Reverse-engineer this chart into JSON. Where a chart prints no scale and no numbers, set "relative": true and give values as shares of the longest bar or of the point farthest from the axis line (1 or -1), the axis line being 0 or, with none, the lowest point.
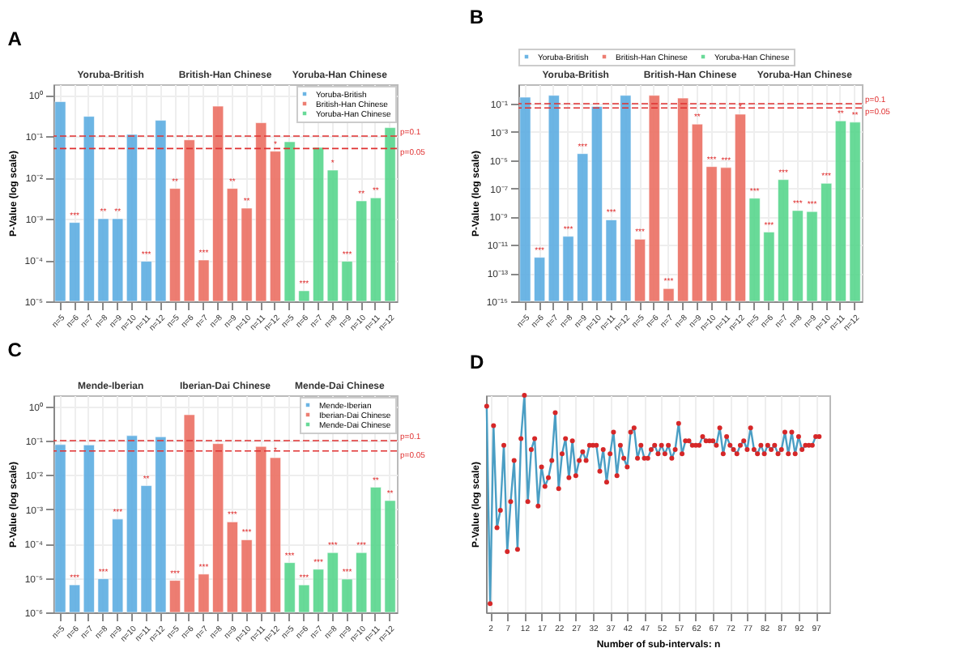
{
  "chart_data": [
    {
      "type": "bar",
      "title": "A",
      "ylabel": "P-Value (log scale)",
      "log": "y",
      "grid": true,
      "legend": "top right",
      "categories": [
        "n=5",
        "n=6",
        "n=7",
        "n=8",
        "n=9",
        "n=10",
        "n=11",
        "n=12",
        "n=5",
        "n=6",
        "n=7",
        "n=8",
        "n=9",
        "n=10",
        "n=11",
        "n=12",
        "n=5",
        "n=6",
        "n=7",
        "n=8",
        "n=9",
        "n=10",
        "n=11",
        "n=12"
      ],
      "ylim": [
        1e-05,
        1.8
      ],
      "yticks": [
        {
          "value": 1,
          "label": "10⁰"
        },
        {
          "value": 0.1,
          "label": "10⁻¹"
        },
        {
          "value": 0.01,
          "label": "10⁻²"
        },
        {
          "value": 0.001,
          "label": "10⁻³"
        },
        {
          "value": 0.0001,
          "label": "10⁻⁴"
        },
        {
          "value": 1e-05,
          "label": "10⁻⁵"
        }
      ],
      "series": [
        {
          "name": "Yoruba-British",
          "color": "#5dade2",
          "values": [
            0.68,
            0.00081,
            0.3,
            0.001,
            0.001,
            0.11,
            9.3e-05,
            0.24,
            null,
            null,
            null,
            null,
            null,
            null,
            null,
            null,
            null,
            null,
            null,
            null,
            null,
            null,
            null,
            null
          ],
          "value_labels": [
            null,
            "***",
            null,
            "**",
            "**",
            null,
            "***",
            null,
            null,
            null,
            null,
            null,
            null,
            null,
            null,
            null,
            null,
            null,
            null,
            null,
            null,
            null,
            null,
            null
          ]
        },
        {
          "name": "British-Han Chinese",
          "color": "#ec7063",
          "values": [
            null,
            null,
            null,
            null,
            null,
            null,
            null,
            null,
            0.0054,
            0.081,
            0.0001,
            0.53,
            0.0054,
            0.0018,
            0.21,
            0.043,
            null,
            null,
            null,
            null,
            null,
            null,
            null,
            null
          ],
          "value_labels": [
            null,
            null,
            null,
            null,
            null,
            null,
            null,
            null,
            "**",
            null,
            "***",
            null,
            "**",
            "**",
            null,
            "*",
            null,
            null,
            null,
            null,
            null,
            null,
            null,
            null
          ]
        },
        {
          "name": "Yoruba-Han Chinese",
          "color": "#58d68d",
          "values": [
            null,
            null,
            null,
            null,
            null,
            null,
            null,
            null,
            null,
            null,
            null,
            null,
            null,
            null,
            null,
            null,
            0.073,
            1.8e-05,
            0.053,
            0.015,
            9.3e-05,
            0.0027,
            0.0032,
            0.16
          ],
          "value_labels": [
            null,
            null,
            null,
            null,
            null,
            null,
            null,
            null,
            null,
            null,
            null,
            null,
            null,
            null,
            null,
            null,
            null,
            "***",
            null,
            "*",
            "***",
            "**",
            "**",
            null
          ]
        }
      ],
      "ref_lines": [
        {
          "axis": "y",
          "value": 0.1,
          "label": "p=0.1",
          "color": "#e03030",
          "line_style": "dashed"
        },
        {
          "axis": "y",
          "value": 0.05,
          "label": "p=0.05",
          "color": "#e03030",
          "line_style": "dashed"
        }
      ],
      "annotations": [
        "Yoruba-British",
        "British-Han Chinese",
        "Yoruba-Han Chinese"
      ]
    },
    {
      "type": "bar",
      "title": "B",
      "ylabel": "P-Value (log scale)",
      "log": "y",
      "grid": true,
      "legend": "top",
      "categories": [
        "n=5",
        "n=6",
        "n=7",
        "n=8",
        "n=9",
        "n=10",
        "n=11",
        "n=12",
        "n=5",
        "n=6",
        "n=7",
        "n=8",
        "n=9",
        "n=10",
        "n=11",
        "n=12",
        "n=5",
        "n=6",
        "n=7",
        "n=8",
        "n=9",
        "n=10",
        "n=11",
        "n=12"
      ],
      "ylim": [
        1e-15,
        2.4
      ],
      "yticks": [
        {
          "value": 0.1,
          "label": "10⁻¹"
        },
        {
          "value": 0.001,
          "label": "10⁻³"
        },
        {
          "value": 1e-05,
          "label": "10⁻⁵"
        },
        {
          "value": 1e-07,
          "label": "10⁻⁷"
        },
        {
          "value": 1e-09,
          "label": "10⁻⁹"
        },
        {
          "value": 1e-11,
          "label": "10⁻¹¹"
        },
        {
          "value": 1e-13,
          "label": "10⁻¹³"
        },
        {
          "value": 1e-15,
          "label": "10⁻¹⁵"
        }
      ],
      "series": [
        {
          "name": "Yoruba-British",
          "color": "#5dade2",
          "values": [
            0.29,
            1.3e-12,
            0.39,
            4e-11,
            2.9e-05,
            0.064,
            5.9e-10,
            0.39,
            null,
            null,
            null,
            null,
            null,
            null,
            null,
            null,
            null,
            null,
            null,
            null,
            null,
            null,
            null,
            null
          ],
          "value_labels": [
            null,
            "***",
            null,
            "***",
            "***",
            null,
            "***",
            null,
            null,
            null,
            null,
            null,
            null,
            null,
            null,
            null,
            null,
            null,
            null,
            null,
            null,
            null,
            null,
            null
          ]
        },
        {
          "name": "British-Han Chinese",
          "color": "#ec7063",
          "values": [
            null,
            null,
            null,
            null,
            null,
            null,
            null,
            null,
            2.5e-11,
            0.39,
            8e-15,
            0.25,
            0.0036,
            3.5e-06,
            3e-06,
            0.018,
            null,
            null,
            null,
            null,
            null,
            null,
            null,
            null
          ],
          "value_labels": [
            null,
            null,
            null,
            null,
            null,
            null,
            null,
            null,
            "***",
            null,
            "***",
            null,
            "**",
            "***",
            "***",
            "*",
            null,
            null,
            null,
            null,
            null,
            null,
            null,
            null
          ]
        },
        {
          "name": "Yoruba-Han Chinese",
          "color": "#58d68d",
          "values": [
            null,
            null,
            null,
            null,
            null,
            null,
            null,
            null,
            null,
            null,
            null,
            null,
            null,
            null,
            null,
            null,
            2e-08,
            8e-11,
            4.2e-07,
            2.7e-09,
            2.3e-09,
            2.3e-07,
            0.0061,
            0.0049
          ],
          "value_labels": [
            null,
            null,
            null,
            null,
            null,
            null,
            null,
            null,
            null,
            null,
            null,
            null,
            null,
            null,
            null,
            null,
            "***",
            "***",
            "***",
            "***",
            "***",
            "***",
            "**",
            "**"
          ]
        }
      ],
      "ref_lines": [
        {
          "axis": "y",
          "value": 0.1,
          "label": "p=0.1",
          "color": "#e03030",
          "line_style": "dashed"
        },
        {
          "axis": "y",
          "value": 0.05,
          "label": "p=0.05",
          "color": "#e03030",
          "line_style": "dashed"
        }
      ],
      "annotations": [
        "Yoruba-British",
        "British-Han Chinese",
        "Yoruba-Han Chinese"
      ]
    },
    {
      "type": "bar",
      "title": "C",
      "ylabel": "P-Value (log scale)",
      "log": "y",
      "grid": true,
      "legend": "top right",
      "categories": [
        "n=5",
        "n=6",
        "n=7",
        "n=8",
        "n=9",
        "n=10",
        "n=11",
        "n=12",
        "n=5",
        "n=6",
        "n=7",
        "n=8",
        "n=9",
        "n=10",
        "n=11",
        "n=12",
        "n=5",
        "n=6",
        "n=7",
        "n=8",
        "n=9",
        "n=10",
        "n=11",
        "n=12"
      ],
      "ylim": [
        1e-06,
        2.1
      ],
      "yticks": [
        {
          "value": 1,
          "label": "10⁰"
        },
        {
          "value": 0.1,
          "label": "10⁻¹"
        },
        {
          "value": 0.01,
          "label": "10⁻²"
        },
        {
          "value": 0.001,
          "label": "10⁻³"
        },
        {
          "value": 0.0001,
          "label": "10⁻⁴"
        },
        {
          "value": 1e-05,
          "label": "10⁻⁵"
        },
        {
          "value": 1e-06,
          "label": "10⁻⁶"
        }
      ],
      "series": [
        {
          "name": "Mende-Iberian",
          "color": "#5dade2",
          "values": [
            0.077,
            6.3e-06,
            0.075,
            9.5e-06,
            0.00052,
            0.14,
            0.0049,
            0.13,
            null,
            null,
            null,
            null,
            null,
            null,
            null,
            null,
            null,
            null,
            null,
            null,
            null,
            null,
            null,
            null
          ],
          "value_labels": [
            null,
            "***",
            null,
            "***",
            "***",
            null,
            "**",
            null,
            null,
            null,
            null,
            null,
            null,
            null,
            null,
            null,
            null,
            null,
            null,
            null,
            null,
            null,
            null,
            null
          ]
        },
        {
          "name": "Iberian-Dai Chinese",
          "color": "#ec7063",
          "values": [
            null,
            null,
            null,
            null,
            null,
            null,
            null,
            null,
            8.5e-06,
            0.57,
            1.3e-05,
            0.082,
            0.00043,
            0.00013,
            0.068,
            0.032,
            null,
            null,
            null,
            null,
            null,
            null,
            null,
            null
          ],
          "value_labels": [
            null,
            null,
            null,
            null,
            null,
            null,
            null,
            null,
            "***",
            null,
            "***",
            null,
            "***",
            "***",
            null,
            "*",
            null,
            null,
            null,
            null,
            null,
            null,
            null,
            null
          ]
        },
        {
          "name": "Mende-Dai Chinese",
          "color": "#58d68d",
          "values": [
            null,
            null,
            null,
            null,
            null,
            null,
            null,
            null,
            null,
            null,
            null,
            null,
            null,
            null,
            null,
            null,
            2.8e-05,
            6.3e-06,
            1.8e-05,
            5.5e-05,
            9.3e-06,
            5.5e-05,
            0.0044,
            0.0018
          ],
          "value_labels": [
            null,
            null,
            null,
            null,
            null,
            null,
            null,
            null,
            null,
            null,
            null,
            null,
            null,
            null,
            null,
            null,
            "***",
            "***",
            "***",
            "***",
            "***",
            "***",
            "**",
            "**"
          ]
        }
      ],
      "ref_lines": [
        {
          "axis": "y",
          "value": 0.1,
          "label": "p=0.1",
          "color": "#e03030",
          "line_style": "dashed"
        },
        {
          "axis": "y",
          "value": 0.05,
          "label": "p=0.05",
          "color": "#e03030",
          "line_style": "dashed"
        }
      ],
      "annotations": [
        "Mende-Iberian",
        "Iberian-Dai Chinese",
        "Mende-Dai Chinese"
      ]
    },
    {
      "type": "line",
      "title": "D",
      "xlabel": "Number of sub-intervals: n",
      "ylabel": "P-Value (log scale)",
      "relative": true,
      "grid": "x",
      "marker": "circle",
      "line_style": "solid",
      "xlim": [
        0.8,
        101
      ],
      "xticks": [
        2,
        7,
        12,
        17,
        22,
        27,
        32,
        37,
        42,
        47,
        52,
        57,
        62,
        67,
        72,
        77,
        82,
        87,
        92,
        97
      ],
      "series": [
        {
          "color": "#4a9ec4",
          "x": [
            1,
            2,
            3,
            4,
            5,
            6,
            7,
            8,
            9,
            10,
            11,
            12,
            13,
            14,
            15,
            16,
            17,
            18,
            19,
            20,
            21,
            22,
            23,
            24,
            25,
            26,
            27,
            28,
            29,
            30,
            31,
            32,
            33,
            34,
            35,
            36,
            37,
            38,
            39,
            40,
            41,
            42,
            43,
            44,
            45,
            46,
            47,
            48,
            49,
            50,
            51,
            52,
            53,
            54,
            55,
            56,
            57,
            58,
            59,
            60,
            61,
            62,
            63,
            64,
            65,
            66,
            67,
            68,
            69,
            70,
            71,
            72,
            73,
            74,
            75,
            76,
            77,
            78,
            79,
            80,
            81,
            82,
            83,
            84,
            85,
            86,
            87,
            88,
            89,
            90,
            91,
            92,
            93,
            94,
            95,
            96,
            97,
            98
          ],
          "values": [
            0.95,
            0.04,
            0.86,
            0.39,
            0.47,
            0.77,
            0.28,
            0.51,
            0.7,
            0.29,
            0.8,
            1.0,
            0.51,
            0.75,
            0.8,
            0.49,
            0.67,
            0.58,
            0.62,
            0.7,
            0.92,
            0.57,
            0.73,
            0.8,
            0.62,
            0.79,
            0.63,
            0.7,
            0.74,
            0.7,
            0.77,
            0.77,
            0.77,
            0.65,
            0.75,
            0.6,
            0.73,
            0.83,
            0.63,
            0.77,
            0.71,
            0.67,
            0.83,
            0.85,
            0.71,
            0.77,
            0.71,
            0.71,
            0.75,
            0.77,
            0.73,
            0.77,
            0.73,
            0.77,
            0.71,
            0.75,
            0.87,
            0.73,
            0.79,
            0.79,
            0.77,
            0.77,
            0.77,
            0.81,
            0.79,
            0.79,
            0.79,
            0.77,
            0.85,
            0.73,
            0.81,
            0.77,
            0.75,
            0.73,
            0.77,
            0.79,
            0.75,
            0.85,
            0.75,
            0.73,
            0.77,
            0.73,
            0.77,
            0.75,
            0.77,
            0.73,
            0.75,
            0.83,
            0.73,
            0.83,
            0.73,
            0.81,
            0.75,
            0.77,
            0.77,
            0.77,
            0.81,
            0.81
          ]
        }
      ]
    }
  ]
}
